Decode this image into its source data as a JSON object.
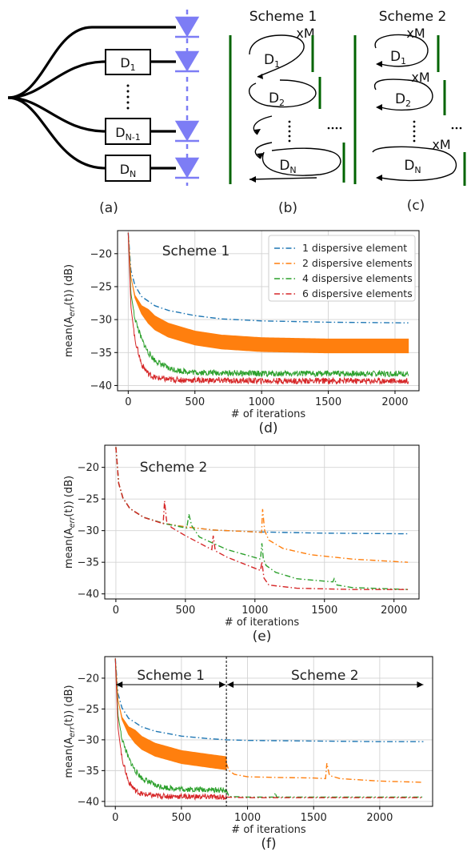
{
  "diagram": {
    "box_labels": [
      {
        "main": "D",
        "sub": "1"
      },
      {
        "main": "D",
        "sub": "N-1"
      },
      {
        "main": "D",
        "sub": "N"
      }
    ],
    "scheme1": {
      "title": "Scheme 1",
      "repeat": "xM",
      "labels": [
        {
          "main": "D",
          "sub": "1"
        },
        {
          "main": "D",
          "sub": "2"
        },
        {
          "main": "D",
          "sub": "N"
        }
      ]
    },
    "scheme2": {
      "title": "Scheme 2",
      "repeat": "xM",
      "labels": [
        {
          "main": "D",
          "sub": "1"
        },
        {
          "main": "D",
          "sub": "2"
        },
        {
          "main": "D",
          "sub": "N"
        }
      ]
    },
    "captions": [
      "(a)",
      "(b)",
      "(c)"
    ]
  },
  "chart_data": [
    {
      "type": "line",
      "title": "Scheme 1",
      "caption": "(d)",
      "xlabel": "# of iterations",
      "ylabel": "mean(A",
      "ylabel_sub": "err",
      "ylabel_tail": "(t)) (dB)",
      "xlim": [
        -80,
        2180
      ],
      "ylim": [
        -40.8,
        -16.5
      ],
      "xticks": [
        0,
        500,
        1000,
        1500,
        2000
      ],
      "yticks": [
        -20,
        -25,
        -30,
        -35,
        -40
      ],
      "grid": true,
      "legend_position": "top-right",
      "series": [
        {
          "name": "1 dispersive element",
          "color": "#1f77b4",
          "x": [
            0,
            20,
            50,
            100,
            200,
            300,
            500,
            700,
            1000,
            1500,
            2100
          ],
          "y": [
            -16.8,
            -22.5,
            -24.8,
            -26.5,
            -27.9,
            -28.6,
            -29.4,
            -29.9,
            -30.2,
            -30.4,
            -30.5
          ]
        },
        {
          "name": "2 dispersive elements",
          "color": "#ff7f0e",
          "x": [
            0,
            20,
            50,
            100,
            200,
            300,
            500,
            700,
            1000,
            1500,
            2100
          ],
          "y": [
            -16.8,
            -23.5,
            -26.5,
            -28.5,
            -30.5,
            -31.6,
            -32.8,
            -33.4,
            -33.8,
            -34.0,
            -34.0
          ]
        },
        {
          "name": "4 dispersive elements",
          "color": "#2ca02c",
          "x": [
            0,
            20,
            50,
            100,
            150,
            200,
            300,
            400,
            500,
            700,
            1000,
            1500,
            2100
          ],
          "y": [
            -16.8,
            -26.0,
            -29.8,
            -33.0,
            -35.0,
            -36.2,
            -37.4,
            -37.8,
            -38.0,
            -38.1,
            -38.2,
            -38.2,
            -38.2
          ]
        },
        {
          "name": "6 dispersive elements",
          "color": "#d62728",
          "x": [
            0,
            20,
            50,
            100,
            150,
            200,
            300,
            500,
            1000,
            2100
          ],
          "y": [
            -16.8,
            -28.0,
            -33.0,
            -36.8,
            -38.2,
            -38.8,
            -39.1,
            -39.2,
            -39.3,
            -39.3
          ]
        }
      ]
    },
    {
      "type": "line",
      "title": "Scheme 2",
      "caption": "(e)",
      "xlabel": "# of iterations",
      "ylabel": "mean(A",
      "ylabel_sub": "err",
      "ylabel_tail": "(t)) (dB)",
      "xlim": [
        -80,
        2180
      ],
      "ylim": [
        -40.8,
        -16.5
      ],
      "xticks": [
        0,
        500,
        1000,
        1500,
        2000
      ],
      "yticks": [
        -20,
        -25,
        -30,
        -35,
        -40
      ],
      "grid": true,
      "series": [
        {
          "color": "#1f77b4",
          "x": [
            0,
            20,
            50,
            100,
            200,
            350,
            500,
            700,
            1000,
            1500,
            2100
          ],
          "y": [
            -16.8,
            -22.5,
            -24.8,
            -26.5,
            -27.9,
            -28.9,
            -29.4,
            -29.9,
            -30.2,
            -30.4,
            -30.5
          ]
        },
        {
          "color": "#ff7f0e",
          "x": [
            0,
            20,
            50,
            100,
            200,
            350,
            500,
            700,
            1000,
            1048,
            1055,
            1070,
            1100,
            1200,
            1400,
            1700,
            2100
          ],
          "y": [
            -16.8,
            -22.5,
            -24.8,
            -26.5,
            -27.9,
            -28.9,
            -29.4,
            -29.9,
            -30.2,
            -30.3,
            -26.6,
            -30.0,
            -31.5,
            -32.8,
            -33.8,
            -34.5,
            -35.0
          ]
        },
        {
          "color": "#2ca02c",
          "x": [
            0,
            20,
            50,
            100,
            200,
            350,
            510,
            525,
            545,
            600,
            800,
            1040,
            1050,
            1060,
            1080,
            1150,
            1300,
            1560,
            1570,
            1590,
            1700,
            2100
          ],
          "y": [
            -16.8,
            -22.5,
            -24.8,
            -26.5,
            -27.9,
            -28.9,
            -29.6,
            -27.4,
            -29.2,
            -31.0,
            -33.0,
            -34.5,
            -32.0,
            -34.4,
            -35.5,
            -36.6,
            -37.6,
            -38.1,
            -37.6,
            -38.6,
            -39.0,
            -39.3
          ]
        },
        {
          "color": "#d62728",
          "x": [
            0,
            20,
            50,
            100,
            200,
            340,
            350,
            365,
            400,
            500,
            690,
            700,
            715,
            800,
            1040,
            1050,
            1065,
            1100,
            1300,
            1700,
            2100
          ],
          "y": [
            -16.8,
            -22.5,
            -24.8,
            -26.5,
            -27.9,
            -28.9,
            -25.3,
            -28.5,
            -29.5,
            -30.8,
            -33.0,
            -30.8,
            -33.2,
            -34.2,
            -36.3,
            -34.9,
            -37.5,
            -38.6,
            -39.1,
            -39.3,
            -39.3
          ]
        }
      ]
    },
    {
      "type": "line",
      "caption": "(f)",
      "xlabel": "# of iterations",
      "ylabel": "mean(A",
      "ylabel_sub": "err",
      "ylabel_tail": "(t)) (dB)",
      "xlim": [
        -80,
        2400
      ],
      "ylim": [
        -40.8,
        -16.5
      ],
      "xticks": [
        0,
        500,
        1000,
        1500,
        2000
      ],
      "yticks": [
        -20,
        -25,
        -30,
        -35,
        -40
      ],
      "grid": true,
      "switch_x": 840,
      "region_labels": [
        "Scheme 1",
        "Scheme 2"
      ],
      "series": [
        {
          "color": "#1f77b4",
          "x": [
            0,
            20,
            50,
            100,
            200,
            300,
            500,
            700,
            840,
            1000,
            1500,
            2000,
            2330
          ],
          "y": [
            -16.8,
            -22.5,
            -24.8,
            -26.5,
            -27.9,
            -28.6,
            -29.4,
            -29.8,
            -30.0,
            -30.1,
            -30.2,
            -30.3,
            -30.3
          ]
        },
        {
          "color": "#ff7f0e",
          "x": [
            0,
            20,
            50,
            100,
            200,
            300,
            500,
            700,
            840,
            860,
            900,
            1000,
            1200,
            1500,
            1590,
            1600,
            1620,
            1700,
            2000,
            2330
          ],
          "y": [
            -16.8,
            -23.5,
            -26.5,
            -28.5,
            -30.5,
            -31.6,
            -32.8,
            -33.4,
            -33.8,
            -35.0,
            -35.6,
            -36.0,
            -36.1,
            -36.2,
            -36.3,
            -33.8,
            -35.8,
            -36.3,
            -36.7,
            -36.9
          ]
        },
        {
          "color": "#2ca02c",
          "x": [
            0,
            20,
            50,
            100,
            150,
            200,
            300,
            400,
            500,
            700,
            840,
            860,
            1000,
            1200,
            1210,
            1220,
            1500,
            2000,
            2330
          ],
          "y": [
            -16.8,
            -26.0,
            -29.8,
            -33.0,
            -35.0,
            -36.2,
            -37.4,
            -37.8,
            -38.0,
            -38.1,
            -38.2,
            -39.2,
            -39.3,
            -39.3,
            -38.6,
            -39.3,
            -39.3,
            -39.3,
            -39.3
          ]
        },
        {
          "color": "#d62728",
          "x": [
            0,
            20,
            50,
            100,
            150,
            200,
            300,
            500,
            840,
            1000,
            1500,
            2000,
            2330
          ],
          "y": [
            -16.8,
            -28.0,
            -33.0,
            -36.8,
            -38.2,
            -38.8,
            -39.1,
            -39.2,
            -39.3,
            -39.4,
            -39.4,
            -39.4,
            -39.4
          ]
        }
      ]
    }
  ]
}
